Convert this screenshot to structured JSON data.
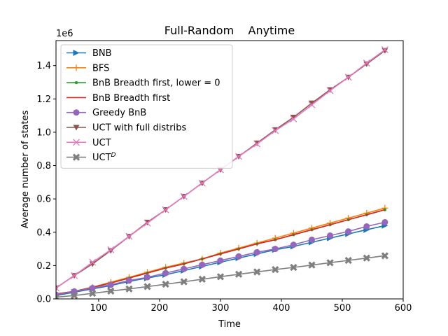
{
  "chart_data": {
    "type": "line",
    "title": "Full-Random    Anytime",
    "xlabel": "Time",
    "ylabel": "Average number of states",
    "y_scale_label": "1e6",
    "xlim": [
      30,
      600
    ],
    "ylim": [
      0,
      1550000
    ],
    "x_ticks": [
      100,
      200,
      300,
      400,
      500,
      600
    ],
    "x_tick_labels": [
      "100",
      "200",
      "300",
      "400",
      "500",
      "600"
    ],
    "y_ticks": [
      0,
      200000,
      400000,
      600000,
      800000,
      1000000,
      1200000,
      1400000
    ],
    "y_tick_labels": [
      "0.0",
      "0.2",
      "0.4",
      "0.6",
      "0.8",
      "1.0",
      "1.2",
      "1.4"
    ],
    "legend_position": "upper-left",
    "x": [
      30,
      60,
      90,
      120,
      150,
      180,
      210,
      240,
      270,
      300,
      330,
      360,
      390,
      420,
      450,
      480,
      510,
      540,
      570
    ],
    "series": [
      {
        "name": "BNB",
        "color": "#1f77b4",
        "marker": "triangle-right",
        "values": [
          20000,
          40000,
          60000,
          80000,
          105000,
          125000,
          145000,
          170000,
          195000,
          220000,
          245000,
          270000,
          295000,
          315000,
          340000,
          365000,
          390000,
          415000,
          440000
        ]
      },
      {
        "name": "BFS",
        "color": "#ff7f0e",
        "marker": "plus",
        "values": [
          30000,
          45000,
          70000,
          100000,
          130000,
          160000,
          190000,
          215000,
          240000,
          275000,
          305000,
          335000,
          365000,
          395000,
          425000,
          455000,
          485000,
          515000,
          545000
        ]
      },
      {
        "name": "BnB Breadth first, lower = 0",
        "color": "#2ca02c",
        "marker": "dot",
        "values": [
          30000,
          45000,
          70000,
          95000,
          125000,
          155000,
          185000,
          210000,
          240000,
          270000,
          300000,
          330000,
          355000,
          385000,
          415000,
          445000,
          475000,
          505000,
          535000
        ]
      },
      {
        "name": "BnB Breadth first",
        "color": "#d62728",
        "marker": "none",
        "values": [
          30000,
          45000,
          70000,
          95000,
          125000,
          155000,
          185000,
          210000,
          240000,
          270000,
          300000,
          330000,
          355000,
          385000,
          415000,
          445000,
          475000,
          505000,
          535000
        ]
      },
      {
        "name": "Greedy BnB",
        "color": "#9467bd",
        "marker": "circle",
        "values": [
          25000,
          45000,
          65000,
          85000,
          110000,
          130000,
          155000,
          180000,
          205000,
          230000,
          255000,
          280000,
          300000,
          325000,
          355000,
          380000,
          405000,
          435000,
          460000
        ]
      },
      {
        "name": "UCT with full distribs",
        "color": "#8c564b",
        "marker": "triangle-down",
        "values": [
          65000,
          140000,
          210000,
          290000,
          375000,
          460000,
          535000,
          615000,
          695000,
          775000,
          855000,
          935000,
          1015000,
          1090000,
          1175000,
          1255000,
          1330000,
          1410000,
          1490000
        ]
      },
      {
        "name": "UCT",
        "color": "#e377c2",
        "marker": "x",
        "values": [
          65000,
          140000,
          220000,
          295000,
          375000,
          455000,
          535000,
          615000,
          695000,
          775000,
          855000,
          930000,
          1010000,
          1080000,
          1165000,
          1250000,
          1330000,
          1415000,
          1495000
        ]
      },
      {
        "name": "UCT",
        "name_sup": "D",
        "color": "#7f7f7f",
        "marker": "x-filled",
        "values": [
          10000,
          20000,
          33000,
          47000,
          60000,
          74000,
          88000,
          103000,
          118000,
          133000,
          148000,
          162000,
          176000,
          189000,
          203000,
          217000,
          231000,
          245000,
          259000
        ]
      }
    ]
  }
}
